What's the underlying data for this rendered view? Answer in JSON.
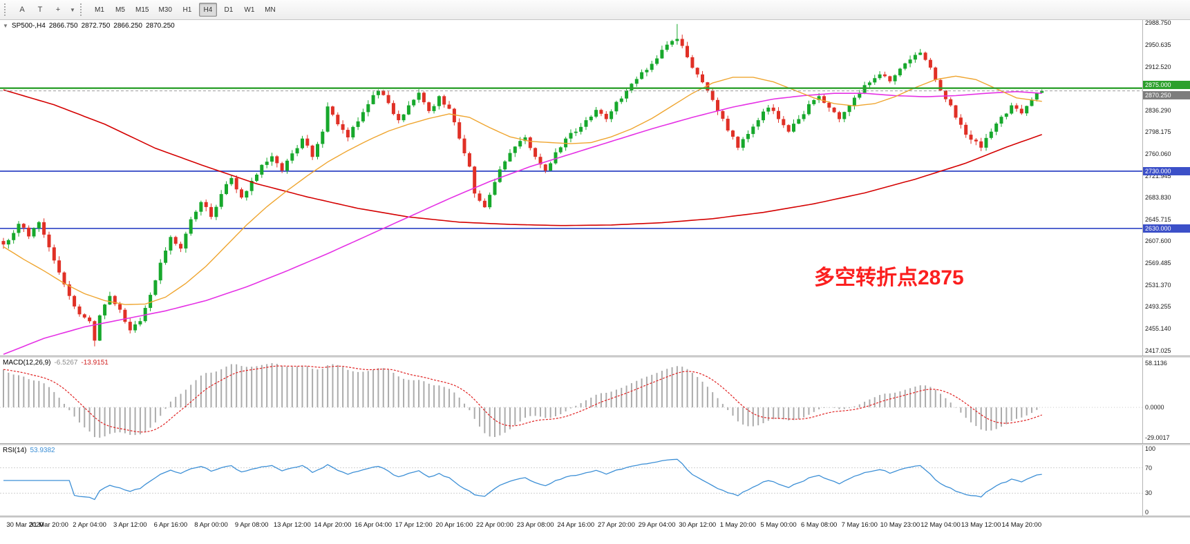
{
  "toolbar": {
    "tools": [
      {
        "name": "annotation-tool",
        "glyph": "A"
      },
      {
        "name": "text-tool",
        "glyph": "T"
      },
      {
        "name": "crosshair-tool",
        "glyph": "+"
      },
      {
        "name": "tools-dropdown",
        "glyph": "▼"
      }
    ],
    "timeframes": [
      {
        "label": "M1",
        "active": false
      },
      {
        "label": "M5",
        "active": false
      },
      {
        "label": "M15",
        "active": false
      },
      {
        "label": "M30",
        "active": false
      },
      {
        "label": "H1",
        "active": false
      },
      {
        "label": "H4",
        "active": true
      },
      {
        "label": "D1",
        "active": false
      },
      {
        "label": "W1",
        "active": false
      },
      {
        "label": "MN",
        "active": false
      }
    ]
  },
  "chart": {
    "collapse_icon": "▼",
    "symbol_title": "SP500-,H4",
    "ohlc": {
      "open": "2866.750",
      "high": "2872.750",
      "low": "2866.250",
      "close": "2870.250"
    },
    "annotation": {
      "text": "多空转折点2875",
      "color": "#fb1f1f"
    }
  },
  "macd": {
    "name": "MACD(12,26,9)",
    "value_main": "-6.5267",
    "value_signal": "-13.9151"
  },
  "rsi": {
    "name": "RSI(14)",
    "value": "53.9382"
  },
  "chart_data": {
    "type": "candlestick",
    "symbol": "SP500-",
    "timeframe": "H4",
    "bars": 206,
    "seed": 7,
    "candle_up_color": "#17a82c",
    "candle_down_color": "#e03026",
    "price_axis": {
      "max": 2994,
      "min": 2408,
      "labels": [
        "2988.750",
        "2950.635",
        "2912.520",
        "2836.290",
        "2798.175",
        "2760.060",
        "2721.945",
        "2683.830",
        "2645.715",
        "2607.600",
        "2569.485",
        "2531.370",
        "2493.255",
        "2455.140",
        "2417.025"
      ]
    },
    "hlines": [
      {
        "value": 2875.0,
        "label": "2875.000",
        "color": "#2ca02c",
        "width": 2.4
      },
      {
        "value": 2730.0,
        "label": "2730.000",
        "color": "#3c50c8",
        "width": 1.8
      },
      {
        "value": 2630.0,
        "label": "2630.000",
        "color": "#3c50c8",
        "width": 1.8
      }
    ],
    "current_price": {
      "value": 2870.25,
      "label": "2870.250",
      "line_color": "#9a9a9a",
      "tag_bg": "#7d7d7d"
    },
    "close_waypoints": [
      [
        0,
        2602
      ],
      [
        3,
        2638
      ],
      [
        5,
        2616
      ],
      [
        7,
        2641
      ],
      [
        9,
        2597
      ],
      [
        11,
        2553
      ],
      [
        13,
        2512
      ],
      [
        15,
        2480
      ],
      [
        17,
        2468
      ],
      [
        18,
        2434
      ],
      [
        19,
        2478
      ],
      [
        21,
        2512
      ],
      [
        23,
        2488
      ],
      [
        25,
        2452
      ],
      [
        27,
        2468
      ],
      [
        29,
        2514
      ],
      [
        31,
        2570
      ],
      [
        33,
        2615
      ],
      [
        35,
        2595
      ],
      [
        37,
        2646
      ],
      [
        39,
        2676
      ],
      [
        41,
        2650
      ],
      [
        43,
        2690
      ],
      [
        45,
        2718
      ],
      [
        47,
        2684
      ],
      [
        49,
        2713
      ],
      [
        51,
        2741
      ],
      [
        53,
        2756
      ],
      [
        55,
        2731
      ],
      [
        57,
        2761
      ],
      [
        59,
        2787
      ],
      [
        61,
        2755
      ],
      [
        63,
        2799
      ],
      [
        64,
        2843
      ],
      [
        66,
        2812
      ],
      [
        68,
        2789
      ],
      [
        70,
        2817
      ],
      [
        72,
        2847
      ],
      [
        74,
        2871
      ],
      [
        76,
        2849
      ],
      [
        78,
        2819
      ],
      [
        80,
        2845
      ],
      [
        82,
        2867
      ],
      [
        84,
        2835
      ],
      [
        86,
        2861
      ],
      [
        88,
        2839
      ],
      [
        90,
        2787
      ],
      [
        92,
        2738
      ],
      [
        93,
        2691
      ],
      [
        95,
        2667
      ],
      [
        97,
        2711
      ],
      [
        99,
        2747
      ],
      [
        101,
        2773
      ],
      [
        103,
        2789
      ],
      [
        105,
        2755
      ],
      [
        107,
        2731
      ],
      [
        109,
        2763
      ],
      [
        111,
        2787
      ],
      [
        113,
        2799
      ],
      [
        115,
        2819
      ],
      [
        117,
        2837
      ],
      [
        119,
        2821
      ],
      [
        121,
        2851
      ],
      [
        123,
        2871
      ],
      [
        125,
        2891
      ],
      [
        127,
        2907
      ],
      [
        129,
        2927
      ],
      [
        131,
        2951
      ],
      [
        133,
        2961
      ],
      [
        135,
        2929
      ],
      [
        137,
        2899
      ],
      [
        139,
        2871
      ],
      [
        141,
        2835
      ],
      [
        143,
        2801
      ],
      [
        145,
        2771
      ],
      [
        147,
        2795
      ],
      [
        149,
        2819
      ],
      [
        151,
        2841
      ],
      [
        153,
        2821
      ],
      [
        155,
        2799
      ],
      [
        157,
        2821
      ],
      [
        159,
        2847
      ],
      [
        161,
        2861
      ],
      [
        163,
        2841
      ],
      [
        165,
        2821
      ],
      [
        167,
        2845
      ],
      [
        169,
        2867
      ],
      [
        171,
        2885
      ],
      [
        173,
        2899
      ],
      [
        175,
        2887
      ],
      [
        177,
        2909
      ],
      [
        179,
        2925
      ],
      [
        181,
        2937
      ],
      [
        183,
        2911
      ],
      [
        185,
        2871
      ],
      [
        187,
        2845
      ],
      [
        189,
        2811
      ],
      [
        191,
        2785
      ],
      [
        193,
        2771
      ],
      [
        195,
        2799
      ],
      [
        197,
        2825
      ],
      [
        199,
        2845
      ],
      [
        201,
        2831
      ],
      [
        203,
        2855
      ],
      [
        204,
        2866.75
      ],
      [
        205,
        2870.25
      ]
    ],
    "wick_overrides": {
      "18": {
        "low": 2424
      },
      "133": {
        "high": 2987
      },
      "205": {
        "high": 2872.75,
        "low": 2866.25
      }
    },
    "ma_lines": [
      {
        "name": "slow-ma-red",
        "color": "#d40000",
        "width": 1.6,
        "waypoints": [
          [
            0,
            2872
          ],
          [
            10,
            2846
          ],
          [
            20,
            2812
          ],
          [
            30,
            2770
          ],
          [
            40,
            2738
          ],
          [
            50,
            2708
          ],
          [
            60,
            2685
          ],
          [
            70,
            2665
          ],
          [
            80,
            2650
          ],
          [
            90,
            2641
          ],
          [
            100,
            2637
          ],
          [
            110,
            2635
          ],
          [
            120,
            2636
          ],
          [
            130,
            2640
          ],
          [
            140,
            2647
          ],
          [
            150,
            2658
          ],
          [
            160,
            2673
          ],
          [
            170,
            2692
          ],
          [
            180,
            2716
          ],
          [
            190,
            2744
          ],
          [
            198,
            2772
          ],
          [
            205,
            2794
          ]
        ]
      },
      {
        "name": "mid-ma-magenta",
        "color": "#e531e5",
        "width": 1.6,
        "waypoints": [
          [
            0,
            2410
          ],
          [
            8,
            2438
          ],
          [
            16,
            2458
          ],
          [
            24,
            2472
          ],
          [
            32,
            2486
          ],
          [
            40,
            2504
          ],
          [
            48,
            2528
          ],
          [
            56,
            2556
          ],
          [
            64,
            2586
          ],
          [
            72,
            2618
          ],
          [
            80,
            2650
          ],
          [
            88,
            2682
          ],
          [
            96,
            2712
          ],
          [
            104,
            2738
          ],
          [
            112,
            2760
          ],
          [
            120,
            2782
          ],
          [
            128,
            2804
          ],
          [
            136,
            2824
          ],
          [
            144,
            2842
          ],
          [
            152,
            2856
          ],
          [
            158,
            2862
          ],
          [
            164,
            2866
          ],
          [
            170,
            2866
          ],
          [
            176,
            2862
          ],
          [
            182,
            2860
          ],
          [
            188,
            2862
          ],
          [
            194,
            2866
          ],
          [
            200,
            2869
          ],
          [
            205,
            2866
          ]
        ]
      },
      {
        "name": "fast-ma-orange",
        "color": "#efa52f",
        "width": 1.4,
        "waypoints": [
          [
            0,
            2598
          ],
          [
            4,
            2576
          ],
          [
            8,
            2556
          ],
          [
            12,
            2534
          ],
          [
            16,
            2516
          ],
          [
            20,
            2504
          ],
          [
            24,
            2497
          ],
          [
            28,
            2498
          ],
          [
            32,
            2510
          ],
          [
            36,
            2534
          ],
          [
            40,
            2564
          ],
          [
            44,
            2600
          ],
          [
            48,
            2636
          ],
          [
            52,
            2668
          ],
          [
            56,
            2696
          ],
          [
            60,
            2722
          ],
          [
            64,
            2746
          ],
          [
            68,
            2766
          ],
          [
            72,
            2784
          ],
          [
            76,
            2800
          ],
          [
            80,
            2812
          ],
          [
            84,
            2822
          ],
          [
            88,
            2830
          ],
          [
            92,
            2824
          ],
          [
            96,
            2806
          ],
          [
            100,
            2790
          ],
          [
            104,
            2782
          ],
          [
            108,
            2780
          ],
          [
            112,
            2778
          ],
          [
            116,
            2780
          ],
          [
            120,
            2790
          ],
          [
            124,
            2804
          ],
          [
            128,
            2822
          ],
          [
            132,
            2844
          ],
          [
            136,
            2866
          ],
          [
            140,
            2884
          ],
          [
            144,
            2894
          ],
          [
            148,
            2894
          ],
          [
            152,
            2886
          ],
          [
            156,
            2872
          ],
          [
            160,
            2858
          ],
          [
            164,
            2848
          ],
          [
            168,
            2844
          ],
          [
            172,
            2848
          ],
          [
            176,
            2860
          ],
          [
            180,
            2876
          ],
          [
            184,
            2890
          ],
          [
            188,
            2896
          ],
          [
            192,
            2890
          ],
          [
            196,
            2874
          ],
          [
            200,
            2858
          ],
          [
            205,
            2852
          ]
        ]
      }
    ],
    "macd": {
      "fast": 12,
      "slow": 26,
      "signal": 9,
      "init_fast_bias": 14,
      "init_slow_bias": -30,
      "hist_color": "#ababab",
      "signal_color": "#e02020",
      "axis_labels": [
        "58.1136",
        "0.0000",
        "-29.0017"
      ]
    },
    "rsi": {
      "period": 14,
      "color": "#3c8fd6",
      "levels": [
        70,
        30
      ],
      "axis_labels": [
        "100",
        "70",
        "30",
        "0"
      ]
    },
    "time_labels": [
      "30 Mar 2020",
      "31 Mar 20:00",
      "2 Apr 04:00",
      "3 Apr 12:00",
      "6 Apr 16:00",
      "8 Apr 00:00",
      "9 Apr 08:00",
      "13 Apr 12:00",
      "14 Apr 20:00",
      "16 Apr 04:00",
      "17 Apr 12:00",
      "20 Apr 16:00",
      "22 Apr 00:00",
      "23 Apr 08:00",
      "24 Apr 16:00",
      "27 Apr 20:00",
      "29 Apr 04:00",
      "30 Apr 12:00",
      "1 May 20:00",
      "5 May 00:00",
      "6 May 08:00",
      "7 May 16:00",
      "10 May 23:00",
      "12 May 04:00",
      "13 May 12:00",
      "14 May 20:00"
    ],
    "label_start_bar": 1,
    "label_step": 8
  }
}
